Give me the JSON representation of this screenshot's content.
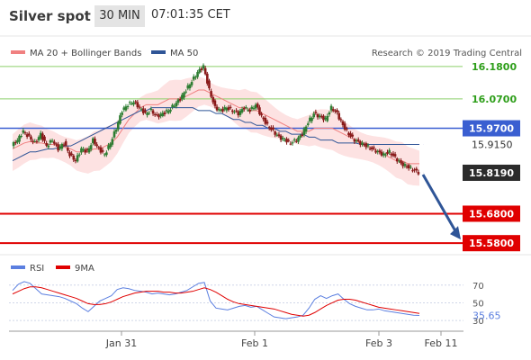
{
  "header": {
    "instrument": "Silver spot",
    "timeframe": "30 MIN",
    "timestamp": "07:01:35 CET"
  },
  "chart_data": [
    {
      "type": "candlestick",
      "title": "",
      "legend": [
        {
          "name": "MA 20 + Bollinger Bands",
          "color": "#f08080"
        },
        {
          "name": "MA 50",
          "color": "#2f5597"
        }
      ],
      "legend_position": "top-left",
      "source": "Research © 2019 Trading Central",
      "x_tick_labels": [
        "Jan 31",
        "Feb 1",
        "Feb 3",
        "Feb 11"
      ],
      "ylim": [
        15.55,
        16.21
      ],
      "y_labels": [
        {
          "value": 16.18,
          "text": "16.1800",
          "style": "resistance",
          "color": "#2e9e1a",
          "line": "#8bcf6a"
        },
        {
          "value": 16.07,
          "text": "16.0700",
          "style": "resistance",
          "color": "#2e9e1a",
          "line": "#8bcf6a"
        },
        {
          "value": 15.97,
          "text": "15.9700",
          "style": "pivot",
          "color": "#3a5fd1",
          "line": "#3a5fd1"
        },
        {
          "value": 15.915,
          "text": "15.9150",
          "style": "plain",
          "color": "#333333",
          "line": "#7a7ad6"
        },
        {
          "value": 15.819,
          "text": "15.8190",
          "style": "last",
          "color": "#2b2b2b",
          "line": "#555555"
        },
        {
          "value": 15.68,
          "text": "15.6800",
          "style": "support",
          "color": "#e00000",
          "line": "#e00000"
        },
        {
          "value": 15.58,
          "text": "15.5800",
          "style": "support",
          "color": "#e00000",
          "line": "#e00000"
        }
      ],
      "forecast_arrow": {
        "from": 15.819,
        "to": 15.58,
        "color": "#2f5597"
      },
      "price_path": [
        15.91,
        15.93,
        15.96,
        15.94,
        15.92,
        15.95,
        15.91,
        15.93,
        15.9,
        15.92,
        15.88,
        15.86,
        15.9,
        15.89,
        15.93,
        15.9,
        15.88,
        15.92,
        15.97,
        16.03,
        16.05,
        16.06,
        16.04,
        16.02,
        16.03,
        16.01,
        16.02,
        16.03,
        16.05,
        16.07,
        16.1,
        16.13,
        16.16,
        16.18,
        16.1,
        16.04,
        16.03,
        16.04,
        16.03,
        16.02,
        16.04,
        16.03,
        16.05,
        16.01,
        15.98,
        15.96,
        15.94,
        15.93,
        15.92,
        15.93,
        15.95,
        15.99,
        16.02,
        16.01,
        16.0,
        16.04,
        16.02,
        15.98,
        15.95,
        15.93,
        15.92,
        15.91,
        15.9,
        15.89,
        15.88,
        15.89,
        15.87,
        15.85,
        15.84,
        15.83,
        15.82
      ],
      "ma20": [
        15.9,
        15.91,
        15.92,
        15.925,
        15.92,
        15.92,
        15.915,
        15.915,
        15.91,
        15.905,
        15.9,
        15.89,
        15.89,
        15.89,
        15.9,
        15.9,
        15.91,
        15.92,
        15.94,
        15.97,
        16.0,
        16.02,
        16.04,
        16.05,
        16.05,
        16.05,
        16.06,
        16.07,
        16.07,
        16.07,
        16.08,
        16.09,
        16.1,
        16.1,
        16.09,
        16.08,
        16.07,
        16.06,
        16.05,
        16.04,
        16.04,
        16.03,
        16.03,
        16.02,
        16.01,
        16.0,
        15.99,
        15.98,
        15.97,
        15.96,
        15.96,
        15.96,
        15.97,
        15.97,
        15.97,
        15.97,
        15.96,
        15.95,
        15.94,
        15.93,
        15.92,
        15.91,
        15.9,
        15.89,
        15.88,
        15.87,
        15.86,
        15.86,
        15.85,
        15.85,
        15.85
      ],
      "ma50": [
        15.86,
        15.87,
        15.88,
        15.89,
        15.89,
        15.895,
        15.9,
        15.9,
        15.905,
        15.91,
        15.91,
        15.92,
        15.93,
        15.94,
        15.95,
        15.96,
        15.97,
        15.98,
        15.99,
        16.0,
        16.01,
        16.02,
        16.03,
        16.03,
        16.04,
        16.04,
        16.04,
        16.04,
        16.04,
        16.04,
        16.04,
        16.04,
        16.03,
        16.03,
        16.03,
        16.02,
        16.02,
        16.01,
        16.0,
        16.0,
        15.99,
        15.99,
        15.98,
        15.98,
        15.97,
        15.97,
        15.96,
        15.96,
        15.95,
        15.95,
        15.95,
        15.94,
        15.94,
        15.93,
        15.93,
        15.93,
        15.92,
        15.92,
        15.92,
        15.92,
        15.915,
        15.915,
        15.915,
        15.915,
        15.915,
        15.915,
        15.915,
        15.915,
        15.915,
        15.915,
        15.915
      ]
    },
    {
      "type": "line",
      "title": "",
      "legend": [
        {
          "name": "RSI",
          "color": "#5b7fe0"
        },
        {
          "name": "9MA",
          "color": "#e00000"
        }
      ],
      "legend_position": "top-left",
      "y_tick_labels": [
        {
          "value": 70,
          "text": "70"
        },
        {
          "value": 50,
          "text": "50"
        },
        {
          "value": 30,
          "text": "30"
        }
      ],
      "ylim": [
        24,
        82
      ],
      "last_value": {
        "value": 35.65,
        "text": "35.65"
      },
      "series": [
        {
          "name": "RSI",
          "color": "#5b7fe0",
          "values": [
            64,
            71,
            74,
            72,
            66,
            60,
            59,
            58,
            57,
            55,
            52,
            49,
            44,
            40,
            46,
            52,
            55,
            58,
            65,
            67,
            66,
            64,
            63,
            62,
            60,
            61,
            60,
            59,
            60,
            62,
            64,
            68,
            72,
            73,
            52,
            44,
            43,
            42,
            44,
            46,
            47,
            45,
            46,
            42,
            38,
            34,
            33,
            32,
            33,
            34,
            36,
            44,
            54,
            58,
            55,
            58,
            60,
            54,
            49,
            46,
            44,
            42,
            42,
            43,
            41,
            40,
            39,
            38,
            37,
            36,
            35.65
          ]
        },
        {
          "name": "9MA",
          "color": "#e00000",
          "values": [
            60,
            63,
            66,
            68,
            68,
            67,
            65,
            63,
            61,
            59,
            57,
            55,
            52,
            49,
            48,
            48,
            49,
            51,
            54,
            57,
            59,
            61,
            62,
            63,
            63,
            63,
            62,
            62,
            61,
            61,
            62,
            63,
            65,
            67,
            65,
            62,
            58,
            54,
            51,
            49,
            48,
            47,
            46,
            45,
            44,
            43,
            41,
            39,
            37,
            36,
            35,
            36,
            39,
            43,
            47,
            50,
            53,
            54,
            54,
            53,
            51,
            49,
            47,
            45,
            44,
            43,
            42,
            41,
            40,
            39,
            38
          ]
        }
      ]
    }
  ]
}
